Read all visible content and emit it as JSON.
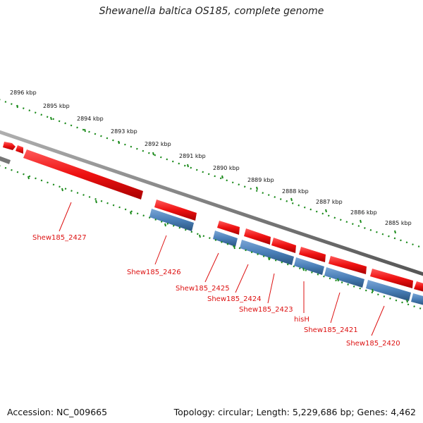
{
  "header": {
    "title": "Shewanella baltica OS185, complete genome"
  },
  "footer": {
    "accession": "Accession: NC_009665",
    "summary": "Topology: circular; Length: 5,229,686 bp; Genes: 4,462"
  },
  "colors": {
    "forward_gene": "#ee1111",
    "reverse_gene": "#4a7fb8",
    "backbone": "#808080",
    "tick": "#1a8a1a",
    "gene_label": "#dd1111"
  },
  "ruler": {
    "labels": [
      "2896 kbp",
      "2895 kbp",
      "2894 kbp",
      "2893 kbp",
      "2892 kbp",
      "2891 kbp",
      "2890 kbp",
      "2889 kbp",
      "2888 kbp",
      "2887 kbp",
      "2886 kbp",
      "2885 kbp"
    ]
  },
  "genes": [
    {
      "name": "Shew185_2427",
      "strand": "forward"
    },
    {
      "name": "Shew185_2426",
      "strand": "reverse"
    },
    {
      "name": "Shew185_2425",
      "strand": "reverse"
    },
    {
      "name": "Shew185_2424",
      "strand": "reverse"
    },
    {
      "name": "Shew185_2423",
      "strand": "reverse"
    },
    {
      "name": "hisH",
      "strand": "reverse"
    },
    {
      "name": "Shew185_2421",
      "strand": "reverse"
    },
    {
      "name": "Shew185_2420",
      "strand": "reverse"
    }
  ]
}
